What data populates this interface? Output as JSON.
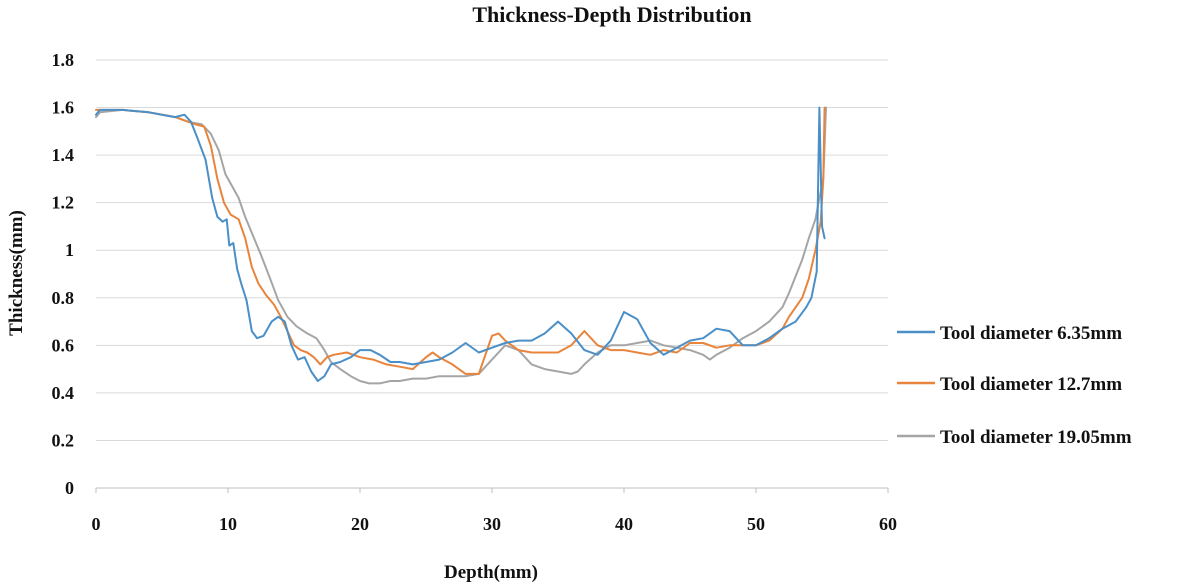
{
  "chart_data": {
    "type": "line",
    "title": "Thickness-Depth Distribution",
    "xlabel": "Depth(mm)",
    "ylabel": "Thickness(mm)",
    "xlim": [
      0,
      60
    ],
    "ylim": [
      0,
      1.8
    ],
    "x_ticks": [
      "0",
      "10",
      "20",
      "30",
      "40",
      "50",
      "60"
    ],
    "y_ticks": [
      "0",
      "0.2",
      "0.4",
      "0.6",
      "0.8",
      "1",
      "1.2",
      "1.4",
      "1.6",
      "1.8"
    ],
    "grid": "horizontal",
    "legend_position": "right",
    "series": [
      {
        "name": "Tool diameter 6.35mm",
        "color": "#4a8fc7",
        "points": [
          [
            0,
            1.57
          ],
          [
            0.3,
            1.59
          ],
          [
            2,
            1.59
          ],
          [
            4,
            1.58
          ],
          [
            6,
            1.56
          ],
          [
            6.7,
            1.57
          ],
          [
            7.2,
            1.54
          ],
          [
            7.7,
            1.47
          ],
          [
            8.3,
            1.38
          ],
          [
            8.8,
            1.22
          ],
          [
            9.2,
            1.14
          ],
          [
            9.6,
            1.12
          ],
          [
            9.9,
            1.13
          ],
          [
            10.1,
            1.02
          ],
          [
            10.4,
            1.03
          ],
          [
            10.7,
            0.92
          ],
          [
            11.0,
            0.86
          ],
          [
            11.4,
            0.79
          ],
          [
            11.8,
            0.66
          ],
          [
            12.2,
            0.63
          ],
          [
            12.7,
            0.64
          ],
          [
            13.3,
            0.7
          ],
          [
            13.8,
            0.72
          ],
          [
            14.3,
            0.7
          ],
          [
            14.8,
            0.6
          ],
          [
            15.3,
            0.54
          ],
          [
            15.8,
            0.55
          ],
          [
            16.3,
            0.49
          ],
          [
            16.8,
            0.45
          ],
          [
            17.3,
            0.47
          ],
          [
            17.8,
            0.52
          ],
          [
            18.5,
            0.53
          ],
          [
            19.3,
            0.55
          ],
          [
            20,
            0.58
          ],
          [
            20.8,
            0.58
          ],
          [
            21.5,
            0.56
          ],
          [
            22.3,
            0.53
          ],
          [
            23,
            0.53
          ],
          [
            24,
            0.52
          ],
          [
            25,
            0.53
          ],
          [
            26,
            0.54
          ],
          [
            27,
            0.57
          ],
          [
            28,
            0.61
          ],
          [
            29,
            0.57
          ],
          [
            30,
            0.59
          ],
          [
            31,
            0.61
          ],
          [
            32,
            0.62
          ],
          [
            33,
            0.62
          ],
          [
            34,
            0.65
          ],
          [
            35,
            0.7
          ],
          [
            36,
            0.65
          ],
          [
            37,
            0.58
          ],
          [
            38,
            0.56
          ],
          [
            39,
            0.62
          ],
          [
            40,
            0.74
          ],
          [
            41,
            0.71
          ],
          [
            42,
            0.61
          ],
          [
            43,
            0.56
          ],
          [
            44,
            0.59
          ],
          [
            45,
            0.62
          ],
          [
            46,
            0.63
          ],
          [
            47,
            0.67
          ],
          [
            48,
            0.66
          ],
          [
            49,
            0.6
          ],
          [
            50,
            0.6
          ],
          [
            51,
            0.63
          ],
          [
            52,
            0.67
          ],
          [
            53,
            0.7
          ],
          [
            53.8,
            0.76
          ],
          [
            54.2,
            0.8
          ],
          [
            54.6,
            0.91
          ],
          [
            54.8,
            1.6
          ],
          [
            55.0,
            1.1
          ],
          [
            55.2,
            1.05
          ]
        ]
      },
      {
        "name": "Tool diameter 12.7mm",
        "color": "#e8843c",
        "points": [
          [
            0,
            1.59
          ],
          [
            2,
            1.59
          ],
          [
            4,
            1.58
          ],
          [
            6,
            1.56
          ],
          [
            7,
            1.54
          ],
          [
            7.5,
            1.53
          ],
          [
            8.2,
            1.52
          ],
          [
            8.7,
            1.44
          ],
          [
            9.2,
            1.3
          ],
          [
            9.7,
            1.2
          ],
          [
            10.2,
            1.15
          ],
          [
            10.8,
            1.13
          ],
          [
            11.3,
            1.05
          ],
          [
            11.8,
            0.93
          ],
          [
            12.3,
            0.86
          ],
          [
            12.9,
            0.81
          ],
          [
            13.5,
            0.77
          ],
          [
            14,
            0.72
          ],
          [
            14.5,
            0.66
          ],
          [
            15,
            0.6
          ],
          [
            15.5,
            0.58
          ],
          [
            16,
            0.57
          ],
          [
            16.5,
            0.55
          ],
          [
            17,
            0.52
          ],
          [
            17.5,
            0.55
          ],
          [
            18,
            0.56
          ],
          [
            19,
            0.57
          ],
          [
            20,
            0.55
          ],
          [
            21,
            0.54
          ],
          [
            22,
            0.52
          ],
          [
            23,
            0.51
          ],
          [
            24,
            0.5
          ],
          [
            25,
            0.55
          ],
          [
            25.5,
            0.57
          ],
          [
            26,
            0.55
          ],
          [
            27,
            0.52
          ],
          [
            28,
            0.48
          ],
          [
            29,
            0.48
          ],
          [
            29.5,
            0.56
          ],
          [
            30,
            0.64
          ],
          [
            30.5,
            0.65
          ],
          [
            31,
            0.62
          ],
          [
            32,
            0.58
          ],
          [
            33,
            0.57
          ],
          [
            34,
            0.57
          ],
          [
            35,
            0.57
          ],
          [
            36,
            0.6
          ],
          [
            37,
            0.66
          ],
          [
            38,
            0.6
          ],
          [
            39,
            0.58
          ],
          [
            40,
            0.58
          ],
          [
            41,
            0.57
          ],
          [
            42,
            0.56
          ],
          [
            43,
            0.58
          ],
          [
            44,
            0.57
          ],
          [
            45,
            0.61
          ],
          [
            46,
            0.61
          ],
          [
            47,
            0.59
          ],
          [
            48,
            0.6
          ],
          [
            49,
            0.6
          ],
          [
            50,
            0.6
          ],
          [
            51,
            0.62
          ],
          [
            52,
            0.67
          ],
          [
            52.5,
            0.72
          ],
          [
            53,
            0.76
          ],
          [
            53.5,
            0.8
          ],
          [
            54,
            0.88
          ],
          [
            54.5,
            1.0
          ],
          [
            54.9,
            1.12
          ],
          [
            55.1,
            1.3
          ],
          [
            55.2,
            1.6
          ]
        ]
      },
      {
        "name": "Tool diameter 19.05mm",
        "color": "#a5a5a5",
        "points": [
          [
            0,
            1.56
          ],
          [
            0.3,
            1.58
          ],
          [
            2,
            1.59
          ],
          [
            4,
            1.58
          ],
          [
            6,
            1.56
          ],
          [
            7,
            1.54
          ],
          [
            8,
            1.53
          ],
          [
            8.7,
            1.49
          ],
          [
            9.3,
            1.42
          ],
          [
            9.8,
            1.32
          ],
          [
            10.3,
            1.27
          ],
          [
            10.8,
            1.22
          ],
          [
            11.3,
            1.14
          ],
          [
            11.9,
            1.06
          ],
          [
            12.5,
            0.98
          ],
          [
            13.2,
            0.88
          ],
          [
            13.8,
            0.79
          ],
          [
            14.5,
            0.72
          ],
          [
            15.2,
            0.68
          ],
          [
            16,
            0.65
          ],
          [
            16.7,
            0.63
          ],
          [
            17.3,
            0.58
          ],
          [
            17.8,
            0.53
          ],
          [
            18.5,
            0.5
          ],
          [
            19.3,
            0.47
          ],
          [
            20,
            0.45
          ],
          [
            20.7,
            0.44
          ],
          [
            21.5,
            0.44
          ],
          [
            22.3,
            0.45
          ],
          [
            23,
            0.45
          ],
          [
            24,
            0.46
          ],
          [
            25,
            0.46
          ],
          [
            26,
            0.47
          ],
          [
            27,
            0.47
          ],
          [
            28,
            0.47
          ],
          [
            29,
            0.48
          ],
          [
            30,
            0.54
          ],
          [
            31,
            0.6
          ],
          [
            32,
            0.58
          ],
          [
            33,
            0.52
          ],
          [
            34,
            0.5
          ],
          [
            35,
            0.49
          ],
          [
            36,
            0.48
          ],
          [
            36.5,
            0.49
          ],
          [
            37,
            0.52
          ],
          [
            38,
            0.57
          ],
          [
            39,
            0.6
          ],
          [
            40,
            0.6
          ],
          [
            41,
            0.61
          ],
          [
            42,
            0.62
          ],
          [
            43,
            0.6
          ],
          [
            44,
            0.59
          ],
          [
            45,
            0.58
          ],
          [
            46,
            0.56
          ],
          [
            46.5,
            0.54
          ],
          [
            47,
            0.56
          ],
          [
            48,
            0.59
          ],
          [
            49,
            0.63
          ],
          [
            50,
            0.66
          ],
          [
            51,
            0.7
          ],
          [
            52,
            0.76
          ],
          [
            52.5,
            0.82
          ],
          [
            53,
            0.89
          ],
          [
            53.5,
            0.96
          ],
          [
            54,
            1.05
          ],
          [
            54.5,
            1.13
          ],
          [
            54.8,
            1.22
          ],
          [
            55.1,
            1.3
          ],
          [
            55.3,
            1.6
          ]
        ]
      }
    ]
  }
}
